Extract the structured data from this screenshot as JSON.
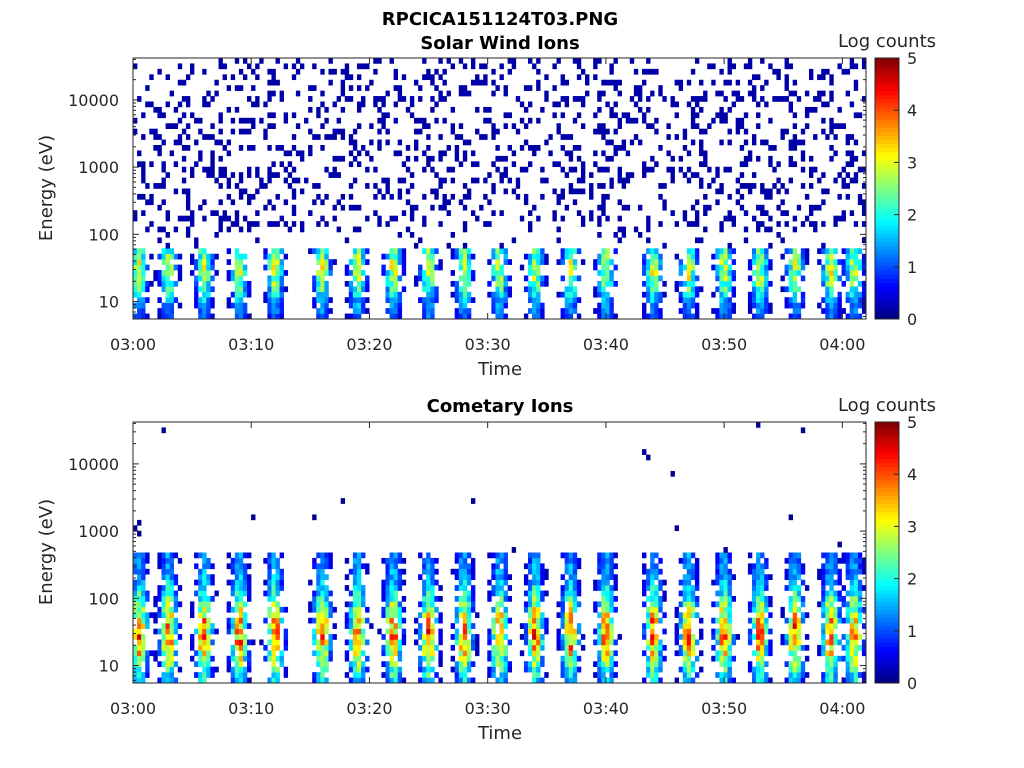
{
  "figure_title": "RPCICA151124T03.PNG",
  "chart_data": [
    {
      "type": "heatmap",
      "title": "Solar Wind Ions",
      "xlabel": "Time",
      "ylabel": "Energy (eV)",
      "x_ticks": [
        "03:00",
        "03:10",
        "03:20",
        "03:30",
        "03:40",
        "03:50",
        "04:00"
      ],
      "xlim": [
        "03:00",
        "04:02"
      ],
      "y_scale": "log",
      "y_ticks": [
        "10",
        "100",
        "1000",
        "10000"
      ],
      "ylim": [
        5.5,
        42000
      ],
      "colorbar": {
        "label": "Log counts",
        "range": [
          0,
          5
        ],
        "ticks": [
          "0",
          "1",
          "2",
          "3",
          "4",
          "5"
        ]
      },
      "burst_times_min": [
        0.5,
        3,
        6,
        9,
        12,
        16,
        19,
        22,
        25,
        28,
        31,
        34,
        37,
        40,
        44,
        47,
        50,
        53,
        56,
        59,
        61
      ],
      "low_energy_band_eV": [
        5.5,
        60
      ],
      "peak_log_counts": 3.0,
      "background_log_counts": 0.2
    },
    {
      "type": "heatmap",
      "title": "Cometary Ions",
      "xlabel": "Time",
      "ylabel": "Energy (eV)",
      "x_ticks": [
        "03:00",
        "03:10",
        "03:20",
        "03:30",
        "03:40",
        "03:50",
        "04:00"
      ],
      "xlim": [
        "03:00",
        "04:02"
      ],
      "y_scale": "log",
      "y_ticks": [
        "10",
        "100",
        "1000",
        "10000"
      ],
      "ylim": [
        5.5,
        42000
      ],
      "colorbar": {
        "label": "Log counts",
        "range": [
          0,
          5
        ],
        "ticks": [
          "0",
          "1",
          "2",
          "3",
          "4",
          "5"
        ]
      },
      "burst_times_min": [
        0.5,
        3,
        6,
        9,
        12,
        16,
        19,
        22,
        25,
        28,
        31,
        34,
        37,
        40,
        44,
        47,
        50,
        53,
        56,
        59,
        61
      ],
      "low_energy_band_eV": [
        5.5,
        500
      ],
      "peak_log_counts": 4.0,
      "background_log_counts": 0.1
    }
  ]
}
